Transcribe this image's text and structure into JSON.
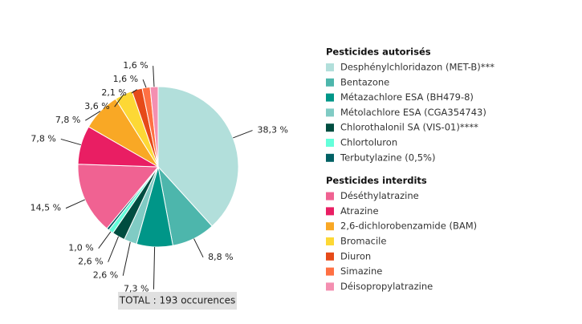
{
  "chart_data": {
    "type": "pie",
    "annotation": "TOTAL : 193 occurences",
    "groups": [
      {
        "name": "Pesticides autorisés",
        "categories": [
          "Desphénylchloridazon (MET-B)***",
          "Bentazone",
          "Métazachlore ESA (BH479-8)",
          "Métolachlore ESA (CGA354743)",
          "Chlorothalonil SA (VIS-01)****",
          "Chlortoluron",
          "Terbutylazine (0,5%)"
        ],
        "values": [
          38.3,
          8.8,
          7.3,
          2.6,
          2.6,
          1.0,
          0.5
        ],
        "value_labels": [
          "38,3 %",
          "8,8 %",
          "7,3 %",
          "2,6 %",
          "2,6 %",
          "1,0 %",
          null
        ],
        "colors": [
          "#b2dfdb",
          "#4db6ac",
          "#009688",
          "#80cbc4",
          "#004d40",
          "#64ffda",
          "#006064"
        ]
      },
      {
        "name": "Pesticides interdits",
        "categories": [
          "Déséthylatrazine",
          "Atrazine",
          "2,6-dichlorobenzamide (BAM)",
          "Bromacile",
          "Diuron",
          "Simazine",
          "Déisopropylatrazine"
        ],
        "values": [
          14.5,
          7.8,
          7.8,
          3.6,
          2.1,
          1.6,
          1.6
        ],
        "value_labels": [
          "14,5 %",
          "7,8 %",
          "7,8 %",
          "3,6 %",
          "2,1 %",
          "1,6 %",
          "1,6 %"
        ],
        "colors": [
          "#f06292",
          "#e91e63",
          "#f9a825",
          "#fdd835",
          "#e64a19",
          "#ff7043",
          "#f48fb1"
        ]
      }
    ]
  }
}
